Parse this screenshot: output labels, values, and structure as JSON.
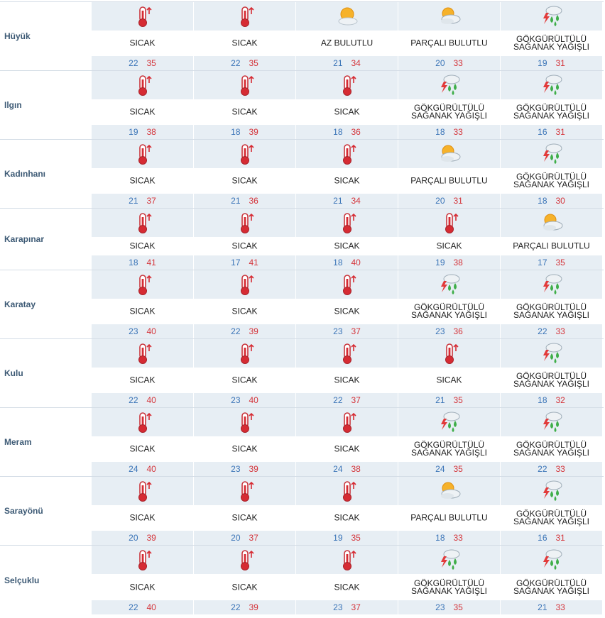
{
  "icons": {
    "SICAK": "thermometer-hot-icon",
    "AZ BULUTLU": "sun-cloud-icon",
    "PARÇALI BULUTLU": "partly-cloudy-icon",
    "GÖKGÜRÜLTÜLÜ SAĞANAK YAĞIŞLI": "thunderstorm-rain-icon"
  },
  "colors": {
    "band": "#e7eef4",
    "city": "#3d5a75",
    "min_temp": "#3a74b7",
    "max_temp": "#d4343a"
  },
  "cities": [
    {
      "name": "Hüyük",
      "days": [
        {
          "cond": "SICAK",
          "min": "22",
          "max": "35"
        },
        {
          "cond": "SICAK",
          "min": "22",
          "max": "35"
        },
        {
          "cond": "AZ BULUTLU",
          "min": "21",
          "max": "34"
        },
        {
          "cond": "PARÇALI BULUTLU",
          "min": "20",
          "max": "33"
        },
        {
          "cond": "GÖKGÜRÜLTÜLÜ SAĞANAK YAĞIŞLI",
          "min": "19",
          "max": "31"
        }
      ]
    },
    {
      "name": "Ilgın",
      "days": [
        {
          "cond": "SICAK",
          "min": "19",
          "max": "38"
        },
        {
          "cond": "SICAK",
          "min": "18",
          "max": "39"
        },
        {
          "cond": "SICAK",
          "min": "18",
          "max": "36"
        },
        {
          "cond": "GÖKGÜRÜLTÜLÜ SAĞANAK YAĞIŞLI",
          "min": "18",
          "max": "33"
        },
        {
          "cond": "GÖKGÜRÜLTÜLÜ SAĞANAK YAĞIŞLI",
          "min": "16",
          "max": "31"
        }
      ]
    },
    {
      "name": "Kadınhanı",
      "days": [
        {
          "cond": "SICAK",
          "min": "21",
          "max": "37"
        },
        {
          "cond": "SICAK",
          "min": "21",
          "max": "36"
        },
        {
          "cond": "SICAK",
          "min": "21",
          "max": "34"
        },
        {
          "cond": "PARÇALI BULUTLU",
          "min": "20",
          "max": "31"
        },
        {
          "cond": "GÖKGÜRÜLTÜLÜ SAĞANAK YAĞIŞLI",
          "min": "18",
          "max": "30"
        }
      ]
    },
    {
      "name": "Karapınar",
      "days": [
        {
          "cond": "SICAK",
          "min": "18",
          "max": "41"
        },
        {
          "cond": "SICAK",
          "min": "17",
          "max": "41"
        },
        {
          "cond": "SICAK",
          "min": "18",
          "max": "40"
        },
        {
          "cond": "SICAK",
          "min": "19",
          "max": "38"
        },
        {
          "cond": "PARÇALI BULUTLU",
          "min": "17",
          "max": "35"
        }
      ]
    },
    {
      "name": "Karatay",
      "days": [
        {
          "cond": "SICAK",
          "min": "23",
          "max": "40"
        },
        {
          "cond": "SICAK",
          "min": "22",
          "max": "39"
        },
        {
          "cond": "SICAK",
          "min": "23",
          "max": "37"
        },
        {
          "cond": "GÖKGÜRÜLTÜLÜ SAĞANAK YAĞIŞLI",
          "min": "23",
          "max": "36"
        },
        {
          "cond": "GÖKGÜRÜLTÜLÜ SAĞANAK YAĞIŞLI",
          "min": "22",
          "max": "33"
        }
      ]
    },
    {
      "name": "Kulu",
      "days": [
        {
          "cond": "SICAK",
          "min": "22",
          "max": "40"
        },
        {
          "cond": "SICAK",
          "min": "23",
          "max": "40"
        },
        {
          "cond": "SICAK",
          "min": "22",
          "max": "37"
        },
        {
          "cond": "SICAK",
          "min": "21",
          "max": "35"
        },
        {
          "cond": "GÖKGÜRÜLTÜLÜ SAĞANAK YAĞIŞLI",
          "min": "18",
          "max": "32"
        }
      ]
    },
    {
      "name": "Meram",
      "days": [
        {
          "cond": "SICAK",
          "min": "24",
          "max": "40"
        },
        {
          "cond": "SICAK",
          "min": "23",
          "max": "39"
        },
        {
          "cond": "SICAK",
          "min": "24",
          "max": "38"
        },
        {
          "cond": "GÖKGÜRÜLTÜLÜ SAĞANAK YAĞIŞLI",
          "min": "24",
          "max": "35"
        },
        {
          "cond": "GÖKGÜRÜLTÜLÜ SAĞANAK YAĞIŞLI",
          "min": "22",
          "max": "33"
        }
      ]
    },
    {
      "name": "Sarayönü",
      "days": [
        {
          "cond": "SICAK",
          "min": "20",
          "max": "39"
        },
        {
          "cond": "SICAK",
          "min": "20",
          "max": "37"
        },
        {
          "cond": "SICAK",
          "min": "19",
          "max": "35"
        },
        {
          "cond": "PARÇALI BULUTLU",
          "min": "18",
          "max": "33"
        },
        {
          "cond": "GÖKGÜRÜLTÜLÜ SAĞANAK YAĞIŞLI",
          "min": "16",
          "max": "31"
        }
      ]
    },
    {
      "name": "Selçuklu",
      "days": [
        {
          "cond": "SICAK",
          "min": "22",
          "max": "40"
        },
        {
          "cond": "SICAK",
          "min": "22",
          "max": "39"
        },
        {
          "cond": "SICAK",
          "min": "23",
          "max": "37"
        },
        {
          "cond": "GÖKGÜRÜLTÜLÜ SAĞANAK YAĞIŞLI",
          "min": "23",
          "max": "35"
        },
        {
          "cond": "GÖKGÜRÜLTÜLÜ SAĞANAK YAĞIŞLI",
          "min": "21",
          "max": "33"
        }
      ]
    }
  ]
}
